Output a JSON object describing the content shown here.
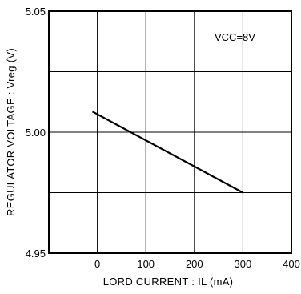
{
  "chart_data": {
    "type": "line",
    "xlabel": "LORD CURRENT : IL (mA)",
    "ylabel": "REGULATOR VOLTAGE : Vreg (V)",
    "xlim": [
      -100,
      400
    ],
    "ylim": [
      4.95,
      5.05
    ],
    "x_ticks": [
      0,
      100,
      200,
      300,
      400
    ],
    "x_tick_labels": [
      "0",
      "100",
      "200",
      "300",
      "400"
    ],
    "y_ticks": [
      4.95,
      5.0,
      5.05
    ],
    "y_tick_labels": [
      "4.95",
      "5.00",
      "5.05"
    ],
    "x_grid": [
      0,
      100,
      200,
      300
    ],
    "y_grid": [
      4.975,
      5.0,
      5.025
    ],
    "grid": true,
    "annotation": "VCC=8V",
    "series": [
      {
        "x": [
          -10,
          300
        ],
        "y": [
          5.0085,
          4.975
        ]
      }
    ]
  }
}
